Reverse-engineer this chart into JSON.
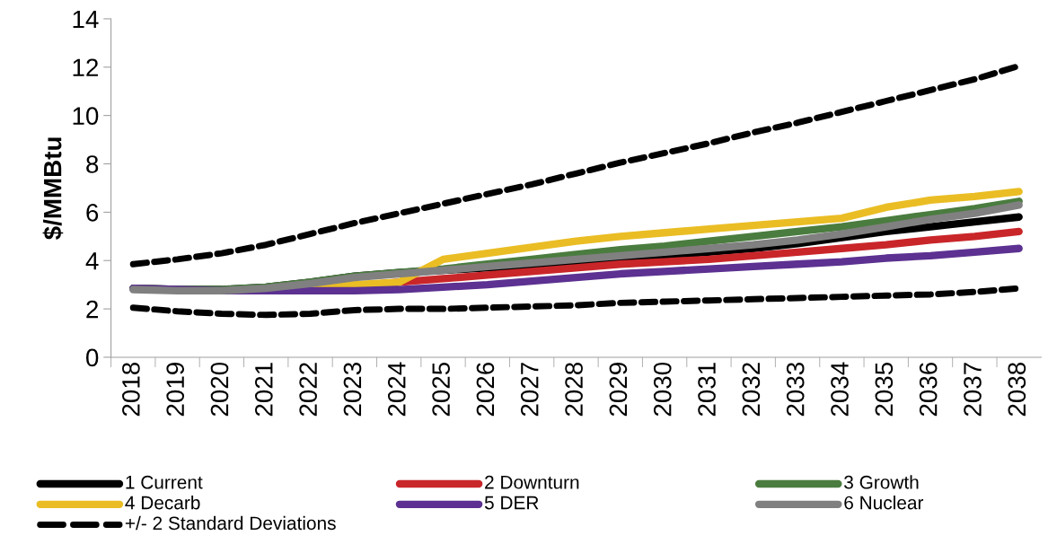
{
  "chart_data": {
    "type": "line",
    "ylabel": "$/MMBtu",
    "categories": [
      "2018",
      "2019",
      "2020",
      "2021",
      "2022",
      "2023",
      "2024",
      "2025",
      "2026",
      "2027",
      "2028",
      "2029",
      "2030",
      "2031",
      "2032",
      "2033",
      "2034",
      "2035",
      "2036",
      "2037",
      "2038"
    ],
    "ylim": [
      0,
      14
    ],
    "yticks": [
      0,
      2,
      4,
      6,
      8,
      10,
      12,
      14
    ],
    "grid": false,
    "legend": "bottom",
    "marker": "none",
    "series": [
      {
        "name": "1 Current",
        "color": "#000000",
        "line_style": "solid",
        "values": [
          2.85,
          2.8,
          2.8,
          2.9,
          3.1,
          3.35,
          3.5,
          3.6,
          3.7,
          3.8,
          3.9,
          4.05,
          4.2,
          4.35,
          4.5,
          4.7,
          4.95,
          5.2,
          5.4,
          5.6,
          5.8
        ]
      },
      {
        "name": "2 Downturn",
        "color": "#c9262a",
        "line_style": "solid",
        "values": [
          null,
          null,
          null,
          null,
          null,
          2.95,
          3.1,
          3.25,
          3.4,
          3.55,
          3.7,
          3.85,
          3.95,
          4.05,
          4.2,
          4.35,
          4.5,
          4.65,
          4.85,
          5.0,
          5.2
        ]
      },
      {
        "name": "3 Growth",
        "color": "#4a7c3f",
        "line_style": "solid",
        "values": [
          2.85,
          2.8,
          2.8,
          2.9,
          3.1,
          3.35,
          3.5,
          3.65,
          3.85,
          4.05,
          4.25,
          4.45,
          4.6,
          4.8,
          5.0,
          5.2,
          5.4,
          5.65,
          5.9,
          6.15,
          6.45
        ]
      },
      {
        "name": "4 Decarb",
        "color": "#eabd24",
        "line_style": "solid",
        "values": [
          null,
          null,
          null,
          2.8,
          2.9,
          3.0,
          3.1,
          4.05,
          4.3,
          4.55,
          4.8,
          5.0,
          5.15,
          5.3,
          5.45,
          5.6,
          5.75,
          6.2,
          6.5,
          6.65,
          6.85
        ]
      },
      {
        "name": "5 DER",
        "color": "#5c3191",
        "line_style": "solid",
        "values": [
          2.85,
          2.8,
          2.75,
          2.75,
          2.75,
          2.75,
          2.8,
          2.9,
          3.0,
          3.15,
          3.3,
          3.45,
          3.55,
          3.65,
          3.75,
          3.85,
          3.95,
          4.1,
          4.2,
          4.35,
          4.5
        ]
      },
      {
        "name": "6 Nuclear",
        "color": "#808080",
        "line_style": "solid",
        "values": [
          2.8,
          2.75,
          2.75,
          2.85,
          3.05,
          3.3,
          3.45,
          3.6,
          3.75,
          3.9,
          4.05,
          4.2,
          4.35,
          4.5,
          4.65,
          4.85,
          5.1,
          5.4,
          5.7,
          5.95,
          6.3
        ]
      },
      {
        "name": "+/- 2 Standard Deviations",
        "color": "#000000",
        "line_style": "dashed",
        "values": [
          3.85,
          4.05,
          4.3,
          4.65,
          5.1,
          5.55,
          5.95,
          6.35,
          6.75,
          7.15,
          7.6,
          8.05,
          8.45,
          8.85,
          9.3,
          9.7,
          10.15,
          10.6,
          11.05,
          11.5,
          12.05
        ]
      },
      {
        "color": "#000000",
        "line_style": "dashed",
        "values": [
          2.05,
          1.9,
          1.8,
          1.75,
          1.8,
          1.95,
          2.0,
          2.0,
          2.05,
          2.1,
          2.15,
          2.25,
          2.3,
          2.35,
          2.4,
          2.45,
          2.5,
          2.55,
          2.6,
          2.7,
          2.85
        ]
      }
    ]
  }
}
